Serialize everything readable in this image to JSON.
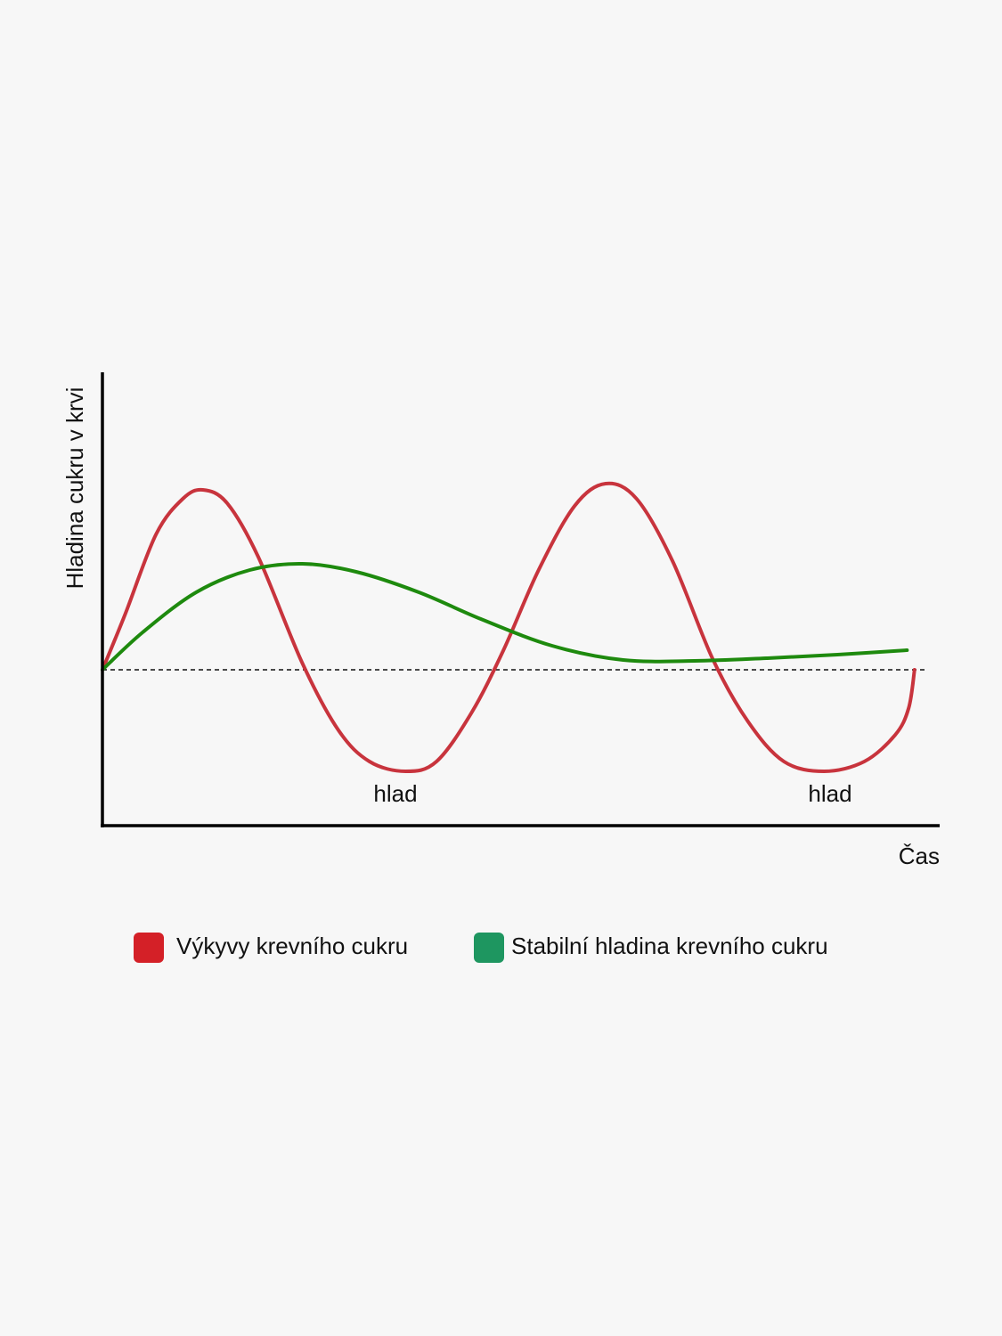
{
  "chart_data": {
    "type": "line",
    "ylabel": "Hladina cukru v krvi",
    "xlabel": "Čas",
    "annotations": [
      "hlad",
      "hlad"
    ],
    "xlim": [
      0,
      100
    ],
    "ylim": [
      -35,
      65
    ],
    "reference_line": 0,
    "series": [
      {
        "name": "Výkyvy krevního cukru",
        "color": "#c8343d",
        "legend_color": "#d42027",
        "x": [
          0,
          2.7,
          6.4,
          9.6,
          12.0,
          14.9,
          18.6,
          23.9,
          28.2,
          31.9,
          36.2,
          39.9,
          44.1,
          47.9,
          52.1,
          56.4,
          60.1,
          63.8,
          68.1,
          72.9,
          77.1,
          81.4,
          86.2,
          91.0,
          94.7,
          96.3,
          97.0
        ],
        "values": [
          0,
          12.4,
          30.4,
          38.4,
          40.4,
          37.4,
          25.4,
          1.4,
          -13.6,
          -20.6,
          -22.8,
          -20.6,
          -9.6,
          4.4,
          22.4,
          36.8,
          41.8,
          38.4,
          24.4,
          2.4,
          -11.6,
          -20.6,
          -22.8,
          -20.6,
          -14.6,
          -8.6,
          0
        ]
      },
      {
        "name": "Stabilní hladina krevního cukru",
        "color": "#1e8a0e",
        "legend_color": "#1e9660",
        "x": [
          0,
          4.8,
          11.2,
          17.6,
          23.9,
          30.3,
          37.8,
          45.2,
          53.7,
          62.2,
          70.7,
          79.3,
          87.8,
          96.1
        ],
        "values": [
          0,
          8.4,
          17.4,
          22.4,
          23.8,
          22.0,
          17.4,
          11.4,
          5.4,
          2.2,
          2.0,
          2.6,
          3.4,
          4.4
        ]
      }
    ]
  }
}
